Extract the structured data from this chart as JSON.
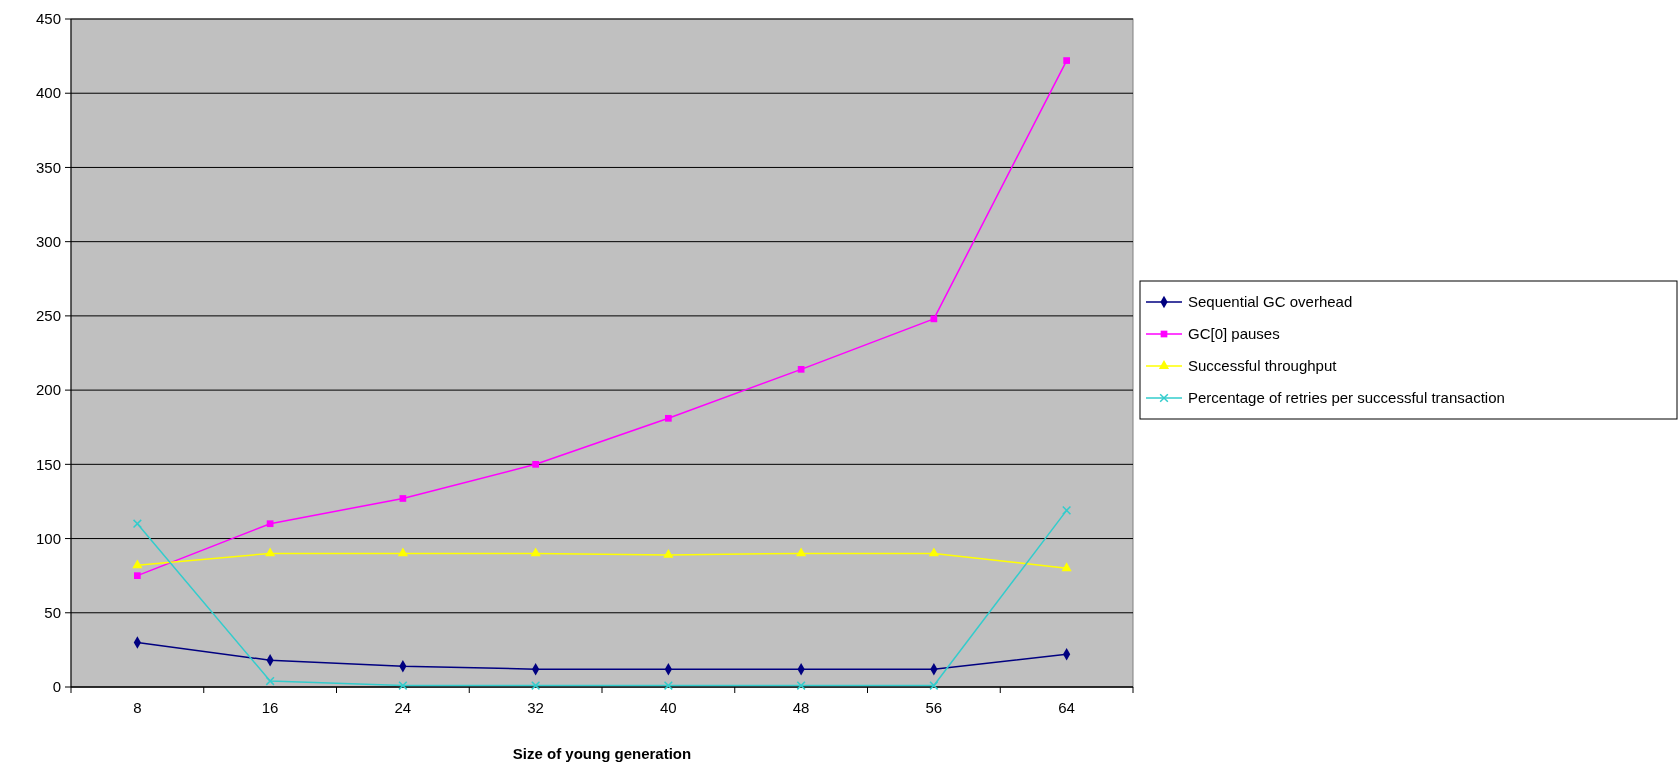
{
  "chart_data": {
    "type": "line",
    "xlabel": "Size of young generation",
    "categories": [
      "8",
      "16",
      "24",
      "32",
      "40",
      "48",
      "56",
      "64"
    ],
    "series": [
      {
        "name": "Sequential GC overhead",
        "color": "#000080",
        "marker": "diamond",
        "values": [
          30,
          18,
          14,
          12,
          12,
          12,
          12,
          22
        ]
      },
      {
        "name": "GC[0] pauses",
        "color": "#ff00ff",
        "marker": "square",
        "values": [
          75,
          110,
          127,
          150,
          181,
          214,
          248,
          422
        ]
      },
      {
        "name": "Successful throughput",
        "color": "#ffff00",
        "marker": "triangle",
        "values": [
          82,
          90,
          90,
          90,
          89,
          90,
          90,
          80
        ]
      },
      {
        "name": "Percentage of retries per successful transaction",
        "color": "#33cccc",
        "marker": "cross",
        "values": [
          110,
          4,
          1,
          1,
          1,
          1,
          1,
          119
        ]
      }
    ],
    "ylim": [
      0,
      450
    ],
    "yticks": [
      0,
      50,
      100,
      150,
      200,
      250,
      300,
      350,
      400,
      450
    ],
    "grid": "y",
    "legend": "right"
  }
}
